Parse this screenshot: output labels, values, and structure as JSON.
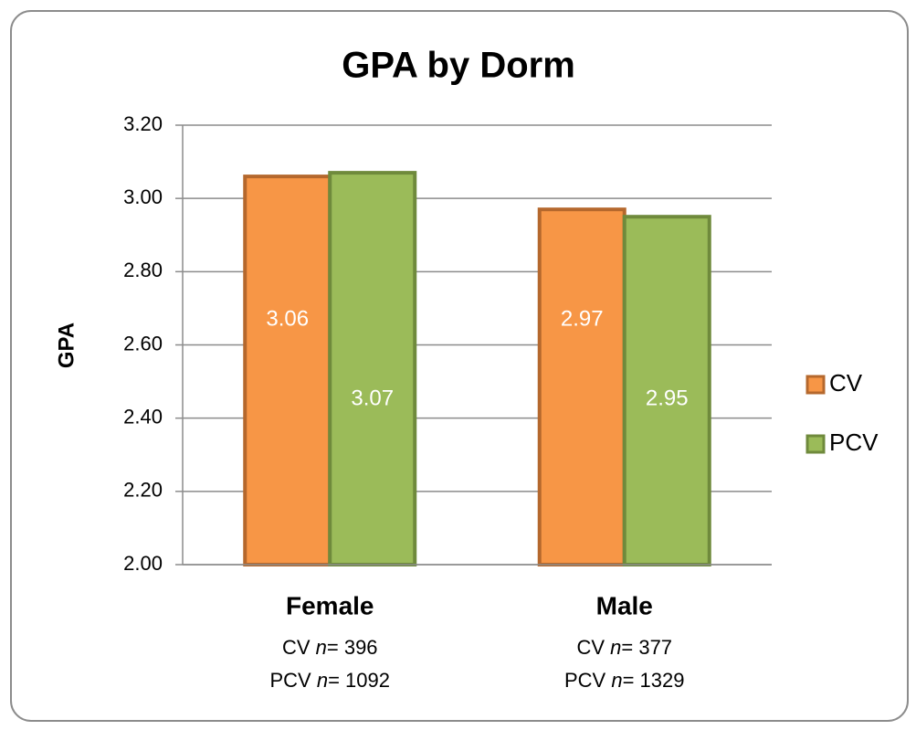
{
  "chart_data": {
    "type": "bar",
    "title": "GPA by Dorm",
    "ylabel": "GPA",
    "categories": [
      "Female",
      "Male"
    ],
    "category_notes": [
      [
        [
          "CV ",
          "n",
          "= 396"
        ],
        [
          "PCV ",
          "n",
          "= 1092"
        ]
      ],
      [
        [
          "CV ",
          "n",
          "= 377"
        ],
        [
          "PCV ",
          "n",
          "= 1329"
        ]
      ]
    ],
    "series": [
      {
        "name": "CV",
        "color": "#f79646",
        "edge_color": "#b5682d",
        "values": [
          3.06,
          2.97
        ]
      },
      {
        "name": "PCV",
        "color": "#9bbb59",
        "edge_color": "#6f8a3c",
        "values": [
          3.07,
          2.95
        ]
      }
    ],
    "ylim": [
      2.0,
      3.2
    ],
    "yticks": [
      {
        "value": 2.0,
        "label": "2.00"
      },
      {
        "value": 2.2,
        "label": "2.20"
      },
      {
        "value": 2.4,
        "label": "2.40"
      },
      {
        "value": 2.6,
        "label": "2.60"
      },
      {
        "value": 2.8,
        "label": "2.80"
      },
      {
        "value": 3.0,
        "label": "3.00"
      },
      {
        "value": 3.2,
        "label": "3.20"
      }
    ],
    "grid": true,
    "legend": "right"
  }
}
